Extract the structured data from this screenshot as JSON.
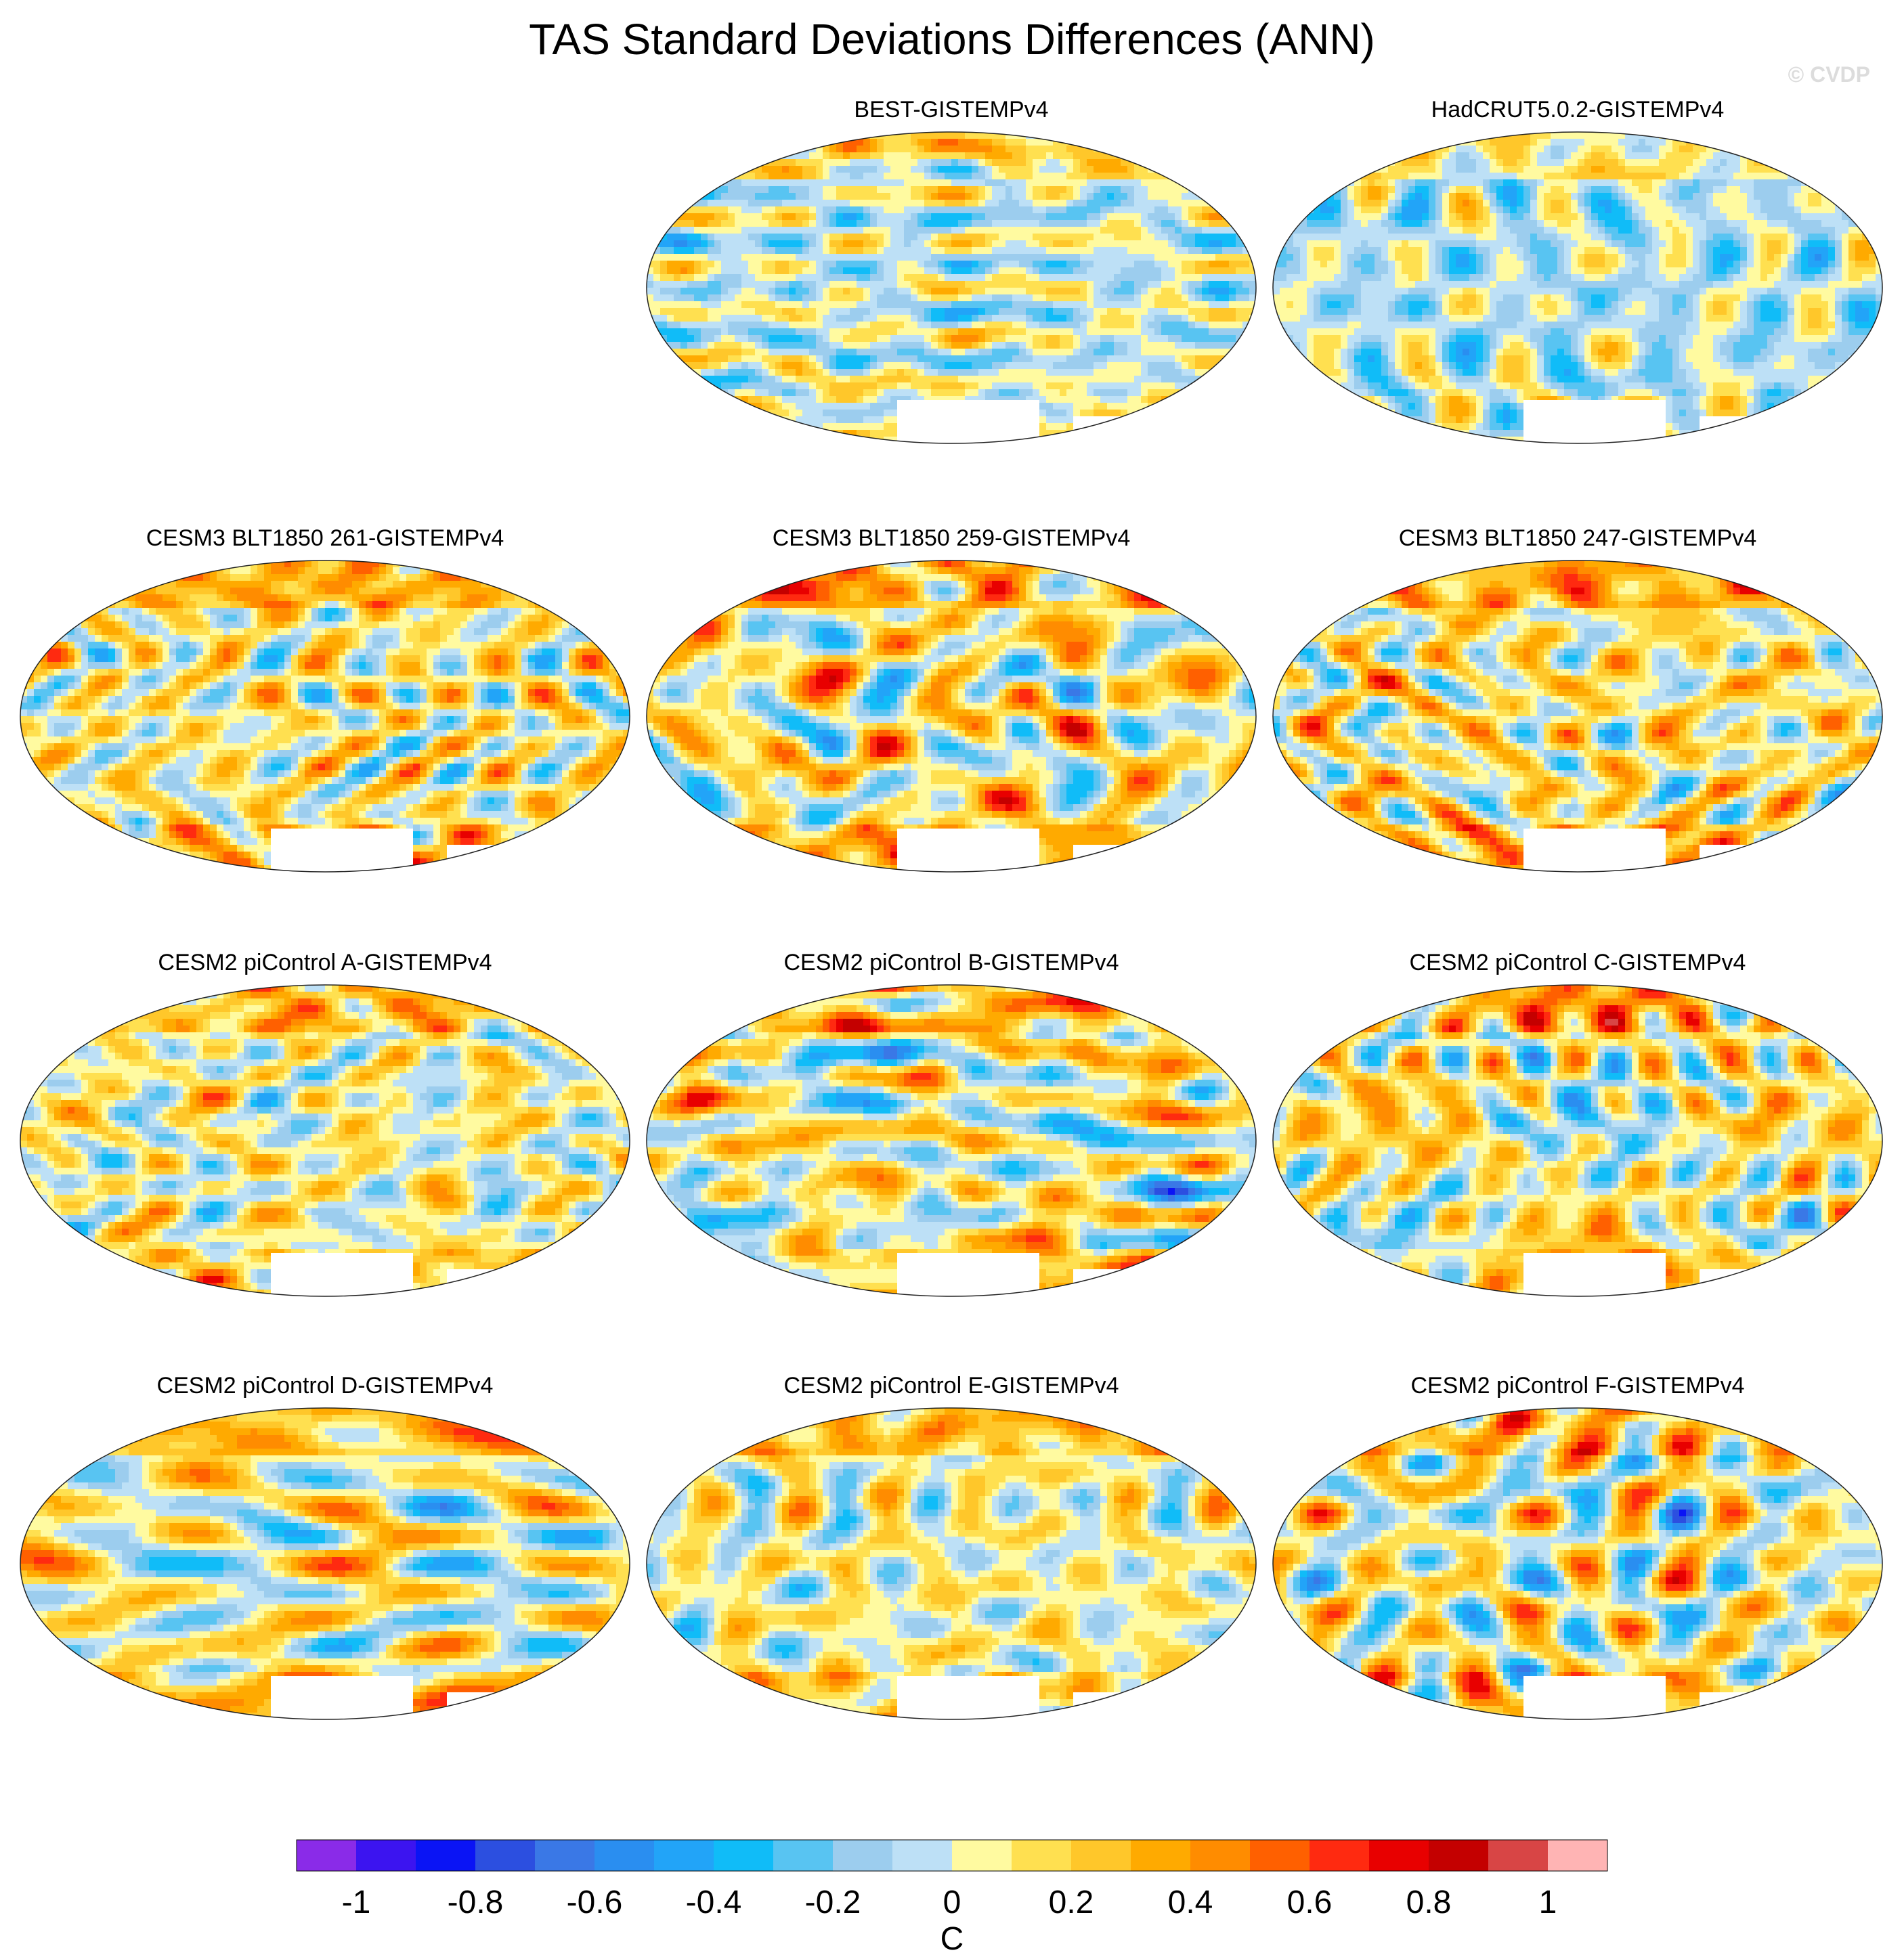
{
  "title": "TAS Standard Deviations Differences (ANN)",
  "watermark": "© CVDP",
  "chart_data": {
    "type": "heatmap",
    "projection": "Robinson-style global map, centered on the Pacific",
    "panels": [
      {
        "name": "BEST-GISTEMPv4",
        "seed": 11,
        "amp": 0.45,
        "bias": -0.03
      },
      {
        "name": "HadCRUT5.0.2-GISTEMPv4",
        "seed": 23,
        "amp": 0.45,
        "bias": -0.07
      },
      {
        "name": "CESM3 BLT1850 261-GISTEMPv4",
        "seed": 37,
        "amp": 0.68,
        "bias": 0.08
      },
      {
        "name": "CESM3 BLT1850 259-GISTEMPv4",
        "seed": 41,
        "amp": 0.68,
        "bias": 0.09
      },
      {
        "name": "CESM3 BLT1850 247-GISTEMPv4",
        "seed": 53,
        "amp": 0.7,
        "bias": 0.1
      },
      {
        "name": "CESM2 piControl A-GISTEMPv4",
        "seed": 61,
        "amp": 0.6,
        "bias": 0.05
      },
      {
        "name": "CESM2 piControl B-GISTEMPv4",
        "seed": 71,
        "amp": 0.6,
        "bias": 0.05
      },
      {
        "name": "CESM2 piControl C-GISTEMPv4",
        "seed": 83,
        "amp": 0.6,
        "bias": 0.06
      },
      {
        "name": "CESM2 piControl D-GISTEMPv4",
        "seed": 89,
        "amp": 0.6,
        "bias": 0.05
      },
      {
        "name": "CESM2 piControl E-GISTEMPv4",
        "seed": 97,
        "amp": 0.6,
        "bias": 0.05
      },
      {
        "name": "CESM2 piControl F-GISTEMPv4",
        "seed": 101,
        "amp": 0.6,
        "bias": 0.05
      }
    ],
    "colorbar": {
      "label": "C",
      "range": [
        -1.1,
        1.1
      ],
      "step": 0.1,
      "ticks": [
        -1,
        -0.8,
        -0.6,
        -0.4,
        -0.2,
        0,
        0.2,
        0.4,
        0.6,
        0.8,
        1
      ],
      "tick_labels": [
        "-1",
        "-0.8",
        "-0.6",
        "-0.4",
        "-0.2",
        "0",
        "0.2",
        "0.4",
        "0.6",
        "0.8",
        "1"
      ],
      "colors": [
        "#8a2be8",
        "#3c14f0",
        "#0a14f5",
        "#2c4fe0",
        "#3a78e6",
        "#2a8ef0",
        "#22a4f8",
        "#10bcf8",
        "#58c4f2",
        "#9ccdee",
        "#bde0f6",
        "#fffaa0",
        "#ffe050",
        "#ffc72a",
        "#ffaa00",
        "#ff8c00",
        "#ff6000",
        "#ff2a10",
        "#e80000",
        "#c40000",
        "#d84545",
        "#ffb4b4"
      ]
    },
    "no_data_color": "#ffffff"
  }
}
